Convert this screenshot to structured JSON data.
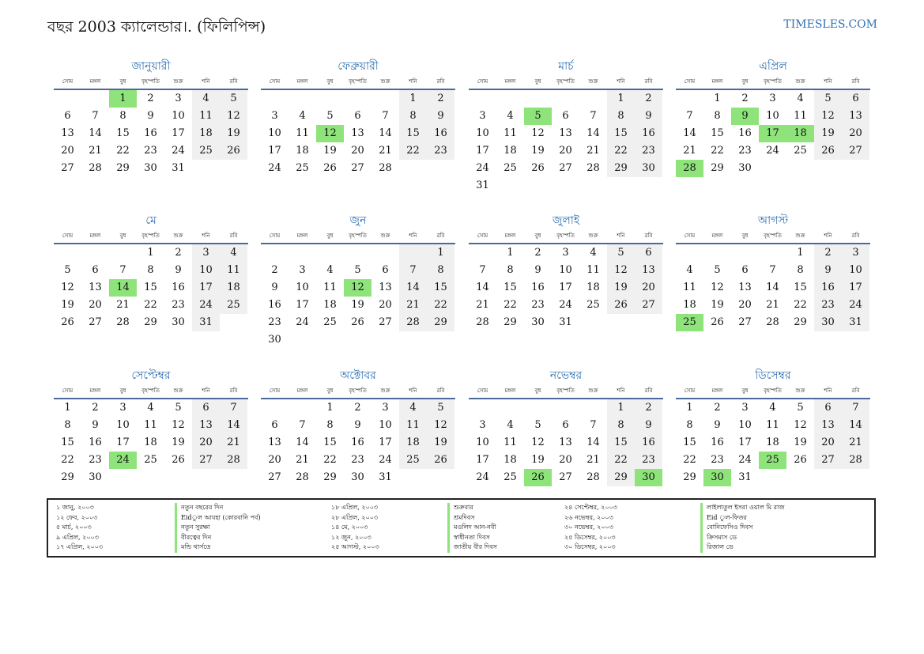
{
  "header": {
    "title": "বছর 2003 ক্যালেন্ডার।. (ফিলিপিন্স)",
    "brand": "TIMESLES.COM"
  },
  "weekdays": [
    "সোম",
    "মঙ্গল",
    "বুধ",
    "বৃহস্পতি",
    "শুক্র",
    "শনি",
    "রবি"
  ],
  "months": [
    {
      "name": "জানুয়ারী",
      "start": 2,
      "days": 31,
      "holidays": [
        1
      ]
    },
    {
      "name": "ফেব্রুয়ারী",
      "start": 5,
      "days": 28,
      "holidays": [
        12
      ]
    },
    {
      "name": "মার্চ",
      "start": 5,
      "days": 31,
      "holidays": [
        5
      ]
    },
    {
      "name": "এপ্রিল",
      "start": 1,
      "days": 30,
      "holidays": [
        9,
        17,
        18,
        28
      ]
    },
    {
      "name": "মে",
      "start": 3,
      "days": 31,
      "holidays": [
        14
      ]
    },
    {
      "name": "জুন",
      "start": 6,
      "days": 30,
      "holidays": [
        12
      ]
    },
    {
      "name": "জুলাই",
      "start": 1,
      "days": 31,
      "holidays": []
    },
    {
      "name": "আগস্ট",
      "start": 4,
      "days": 31,
      "holidays": [
        25
      ]
    },
    {
      "name": "সেপ্টেম্বর",
      "start": 0,
      "days": 30,
      "holidays": [
        24
      ]
    },
    {
      "name": "অক্টোবর",
      "start": 2,
      "days": 31,
      "holidays": []
    },
    {
      "name": "নভেম্বর",
      "start": 5,
      "days": 30,
      "holidays": [
        26,
        30
      ]
    },
    {
      "name": "ডিসেম্বর",
      "start": 0,
      "days": 31,
      "holidays": [
        25,
        30
      ]
    }
  ],
  "holidays_list": [
    {
      "date": "১ জানু, ২০০৩",
      "name": "নতুন বছরের দিন"
    },
    {
      "date": "১২ ফেব, ২০০৩",
      "name": "Eidুল আযহা (কোরবানি পর্ব)"
    },
    {
      "date": "৫ মার্চ, ২০০৩",
      "name": "নতুন সুরক্ষা"
    },
    {
      "date": "৯ এপ্রিল, ২০০৩",
      "name": "বীরত্বের দিন"
    },
    {
      "date": "১৭ এপ্রিল, ২০০৩",
      "name": "মন্ডি থার্সডে"
    },
    {
      "date": "১৮ এপ্রিল, ২০০৩",
      "name": "শুক্রবার"
    },
    {
      "date": "২৮ এপ্রিল, ২০০৩",
      "name": "শ্রমদিবস"
    },
    {
      "date": "১৪ মে, ২০০৩",
      "name": "মওলিদ আন-নবী"
    },
    {
      "date": "১২ জুন, ২০০৩",
      "name": "স্বাধীনতা দিবস"
    },
    {
      "date": "২৫ আগস্ট, ২০০৩",
      "name": "জাতীয় বীর দিবস"
    },
    {
      "date": "২৪ সেপ্টেম্বর, ২০০৩",
      "name": "লাইলাতুল ইসরা ওয়াল মি রাজ"
    },
    {
      "date": "২৬ নভেম্বর, ২০০৩",
      "name": "Eid ুল-ফিতর"
    },
    {
      "date": "৩০ নভেম্বর, ২০০৩",
      "name": "বোনিফেসিও দিবস"
    },
    {
      "date": "২৫ ডিসেম্বর, ২০০৩",
      "name": "ক্রিসমাস ডে"
    },
    {
      "date": "৩০ ডিসেম্বর, ২০০৩",
      "name": "রিজাল ডে"
    }
  ],
  "colors": {
    "accent": "#2f6fb3",
    "holiday": "#8ee37a",
    "weekend": "#f0f0f0"
  }
}
